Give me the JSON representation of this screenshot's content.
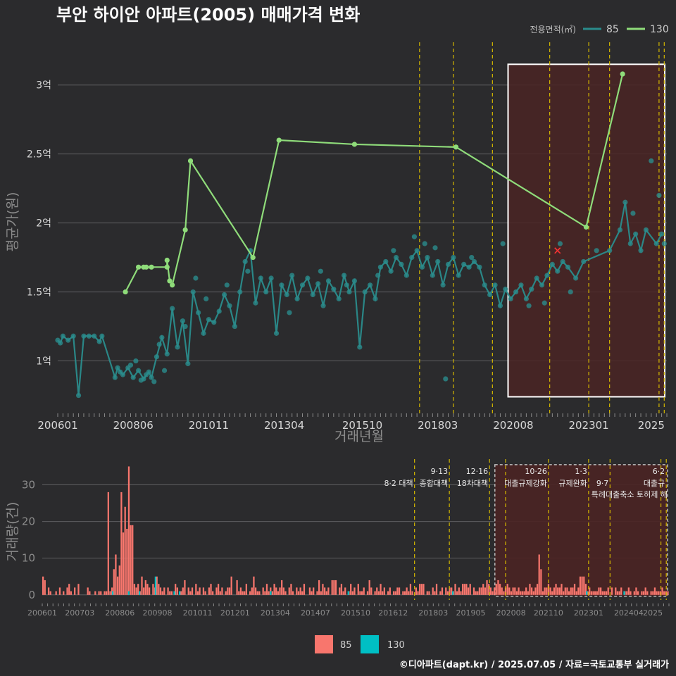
{
  "title": "부안 하이안 아파트(2005) 매매가격 변화",
  "footer": "©디아파트(dapt.kr) / 2025.07.05 / 자료=국토교통부 실거래가",
  "colors": {
    "background": "#2b2b2d",
    "s85_price": "#2a8c8c",
    "s130_price": "#8fdc7a",
    "s85_volume": "#f8766d",
    "s130_volume": "#00bfc4",
    "policy_line": "#d4b800",
    "highlight_fill": "#4a2424",
    "highlight_border": "#ffffff"
  },
  "chart_data": [
    {
      "type": "line",
      "name": "price",
      "ylabel": "평균가(원)",
      "xlabel": "거래년월",
      "yticks": [
        {
          "v": 1.0,
          "label": "1억"
        },
        {
          "v": 1.5,
          "label": "1.5억"
        },
        {
          "v": 2.0,
          "label": "2억"
        },
        {
          "v": 2.5,
          "label": "2.5억"
        },
        {
          "v": 3.0,
          "label": "3억"
        }
      ],
      "ylim": [
        0.62,
        3.32
      ],
      "xlim": [
        "2006-01",
        "2025-07"
      ],
      "xticks": [
        "200601",
        "200806",
        "201011",
        "201304",
        "201510",
        "201803",
        "202008",
        "202301",
        "2025"
      ],
      "legend": {
        "title": "전용면적(㎡)",
        "items": [
          "85",
          "130"
        ],
        "position": "top-right"
      },
      "policy_lines": [
        "2017-08",
        "2018-09",
        "2019-12",
        "2021-10",
        "2023-01",
        "2023-09",
        "2025-04",
        "2025-06"
      ],
      "highlight": {
        "from": "2020-06",
        "to": "2025-07",
        "ymin": 0.74,
        "ymax": 3.15
      },
      "series": [
        {
          "name": "130",
          "points": [
            [
              "2008-03",
              1.5
            ],
            [
              "2008-08",
              1.68
            ],
            [
              "2008-10",
              1.68
            ],
            [
              "2008-11",
              1.68
            ],
            [
              "2009-01",
              1.68
            ],
            [
              "2009-07",
              1.68
            ],
            [
              "2009-07",
              1.73
            ],
            [
              "2009-08",
              1.58
            ],
            [
              "2009-09",
              1.55
            ],
            [
              "2010-02",
              1.95
            ],
            [
              "2010-04",
              2.45
            ],
            [
              "2012-04",
              1.75
            ],
            [
              "2013-02",
              2.6
            ],
            [
              "2015-07",
              2.57
            ],
            [
              "2018-10",
              2.55
            ],
            [
              "2022-12",
              1.97
            ],
            [
              "2024-02",
              3.08
            ]
          ]
        },
        {
          "name": "85",
          "points": [
            [
              "2006-01",
              1.15
            ],
            [
              "2006-02",
              1.13
            ],
            [
              "2006-03",
              1.18
            ],
            [
              "2006-05",
              1.15
            ],
            [
              "2006-07",
              1.18
            ],
            [
              "2006-09",
              0.75
            ],
            [
              "2006-11",
              1.18
            ],
            [
              "2007-01",
              1.18
            ],
            [
              "2007-03",
              1.18
            ],
            [
              "2007-05",
              1.14
            ],
            [
              "2007-06",
              1.18
            ],
            [
              "2007-11",
              0.88
            ],
            [
              "2007-12",
              0.95
            ],
            [
              "2008-02",
              0.9
            ],
            [
              "2008-04",
              0.95
            ],
            [
              "2008-06",
              0.88
            ],
            [
              "2008-08",
              0.93
            ],
            [
              "2008-10",
              0.87
            ],
            [
              "2008-12",
              0.92
            ],
            [
              "2009-01",
              0.88
            ],
            [
              "2009-03",
              1.03
            ],
            [
              "2009-05",
              1.17
            ],
            [
              "2009-07",
              1.05
            ],
            [
              "2009-09",
              1.38
            ],
            [
              "2009-11",
              1.1
            ],
            [
              "2010-01",
              1.29
            ],
            [
              "2010-03",
              0.98
            ],
            [
              "2010-05",
              1.5
            ],
            [
              "2010-07",
              1.35
            ],
            [
              "2010-09",
              1.2
            ],
            [
              "2010-11",
              1.3
            ],
            [
              "2011-01",
              1.28
            ],
            [
              "2011-03",
              1.36
            ],
            [
              "2011-05",
              1.48
            ],
            [
              "2011-07",
              1.4
            ],
            [
              "2011-09",
              1.25
            ],
            [
              "2011-11",
              1.5
            ],
            [
              "2012-01",
              1.72
            ],
            [
              "2012-03",
              1.8
            ],
            [
              "2012-05",
              1.42
            ],
            [
              "2012-07",
              1.6
            ],
            [
              "2012-09",
              1.5
            ],
            [
              "2012-11",
              1.6
            ],
            [
              "2013-01",
              1.2
            ],
            [
              "2013-03",
              1.55
            ],
            [
              "2013-05",
              1.48
            ],
            [
              "2013-07",
              1.62
            ],
            [
              "2013-09",
              1.45
            ],
            [
              "2013-11",
              1.55
            ],
            [
              "2014-01",
              1.6
            ],
            [
              "2014-03",
              1.48
            ],
            [
              "2014-05",
              1.56
            ],
            [
              "2014-07",
              1.4
            ],
            [
              "2014-09",
              1.58
            ],
            [
              "2014-11",
              1.52
            ],
            [
              "2015-01",
              1.45
            ],
            [
              "2015-03",
              1.62
            ],
            [
              "2015-05",
              1.5
            ],
            [
              "2015-07",
              1.58
            ],
            [
              "2015-09",
              1.1
            ],
            [
              "2015-11",
              1.5
            ],
            [
              "2016-01",
              1.55
            ],
            [
              "2016-03",
              1.45
            ],
            [
              "2016-05",
              1.68
            ],
            [
              "2016-07",
              1.72
            ],
            [
              "2016-09",
              1.65
            ],
            [
              "2016-11",
              1.75
            ],
            [
              "2017-01",
              1.7
            ],
            [
              "2017-03",
              1.62
            ],
            [
              "2017-05",
              1.75
            ],
            [
              "2017-07",
              1.8
            ],
            [
              "2017-09",
              1.68
            ],
            [
              "2017-11",
              1.75
            ],
            [
              "2018-01",
              1.62
            ],
            [
              "2018-03",
              1.72
            ],
            [
              "2018-05",
              1.55
            ],
            [
              "2018-07",
              1.7
            ],
            [
              "2018-09",
              1.75
            ],
            [
              "2018-11",
              1.62
            ],
            [
              "2019-01",
              1.7
            ],
            [
              "2019-03",
              1.68
            ],
            [
              "2019-05",
              1.72
            ],
            [
              "2019-07",
              1.68
            ],
            [
              "2019-09",
              1.55
            ],
            [
              "2019-11",
              1.48
            ],
            [
              "2020-01",
              1.55
            ],
            [
              "2020-03",
              1.4
            ],
            [
              "2020-05",
              1.52
            ],
            [
              "2020-07",
              1.45
            ],
            [
              "2020-09",
              1.5
            ],
            [
              "2020-11",
              1.55
            ],
            [
              "2021-01",
              1.45
            ],
            [
              "2021-03",
              1.52
            ],
            [
              "2021-05",
              1.6
            ],
            [
              "2021-07",
              1.55
            ],
            [
              "2021-09",
              1.62
            ],
            [
              "2021-11",
              1.7
            ],
            [
              "2022-01",
              1.65
            ],
            [
              "2022-03",
              1.72
            ],
            [
              "2022-05",
              1.68
            ],
            [
              "2022-08",
              1.6
            ],
            [
              "2022-11",
              1.72
            ],
            [
              "2023-09",
              1.8
            ],
            [
              "2024-01",
              1.95
            ],
            [
              "2024-03",
              2.15
            ],
            [
              "2024-05",
              1.85
            ],
            [
              "2024-07",
              1.92
            ],
            [
              "2024-09",
              1.8
            ],
            [
              "2024-11",
              1.95
            ],
            [
              "2025-03",
              1.85
            ],
            [
              "2025-05",
              1.92
            ]
          ]
        }
      ],
      "scatter_85_extra": [
        [
          "2008-01",
          0.92
        ],
        [
          "2008-05",
          0.97
        ],
        [
          "2008-07",
          1.0
        ],
        [
          "2008-09",
          0.86
        ],
        [
          "2008-11",
          0.9
        ],
        [
          "2009-02",
          0.85
        ],
        [
          "2009-04",
          1.12
        ],
        [
          "2009-06",
          0.93
        ],
        [
          "2010-02",
          1.25
        ],
        [
          "2010-06",
          1.6
        ],
        [
          "2010-10",
          1.45
        ],
        [
          "2011-06",
          1.55
        ],
        [
          "2012-02",
          1.65
        ],
        [
          "2013-06",
          1.35
        ],
        [
          "2014-06",
          1.65
        ],
        [
          "2015-04",
          1.55
        ],
        [
          "2016-04",
          1.62
        ],
        [
          "2016-10",
          1.8
        ],
        [
          "2017-06",
          1.9
        ],
        [
          "2017-10",
          1.85
        ],
        [
          "2018-02",
          1.82
        ],
        [
          "2018-06",
          0.87
        ],
        [
          "2019-04",
          1.75
        ],
        [
          "2020-04",
          1.85
        ],
        [
          "2021-02",
          1.4
        ],
        [
          "2021-08",
          1.42
        ],
        [
          "2022-02",
          1.85
        ],
        [
          "2022-06",
          1.5
        ],
        [
          "2023-04",
          1.8
        ],
        [
          "2024-06",
          2.07
        ],
        [
          "2025-01",
          2.45
        ],
        [
          "2025-04",
          2.2
        ],
        [
          "2025-06",
          1.85
        ]
      ],
      "marker_x": {
        "x": "2022-01",
        "y": 1.8
      }
    },
    {
      "type": "bar",
      "name": "volume",
      "ylabel": "거래량(건)",
      "yticks": [
        0,
        10,
        20,
        30
      ],
      "ylim": [
        -1,
        37
      ],
      "xticks": [
        "200601",
        "200703",
        "200806",
        "200908",
        "201011",
        "201201",
        "201304",
        "201407",
        "201510",
        "201612",
        "201803",
        "201905",
        "202008",
        "202110",
        "202301",
        "202404",
        "2025"
      ],
      "legend": {
        "items": [
          "85",
          "130"
        ],
        "position": "bottom"
      },
      "policy_lines": [
        "2017-08",
        "2018-09",
        "2019-12",
        "2020-06",
        "2021-10",
        "2023-01",
        "2023-09",
        "2025-04",
        "2025-06"
      ],
      "policy_labels": [
        {
          "x": "2017-08",
          "line1": "",
          "line2": "8·2 대책"
        },
        {
          "x": "2018-09",
          "line1": "9·13",
          "line2": "종합대책"
        },
        {
          "x": "2019-12",
          "line1": "12·16",
          "line2": "18차대책"
        },
        {
          "x": "2021-10",
          "line1": "10·26",
          "line2": "대출규제강화"
        },
        {
          "x": "2023-01",
          "line1": "1·3",
          "line2": "규제완화"
        },
        {
          "x": "2023-09",
          "line1": "",
          "line2": "9·7"
        },
        {
          "x": "2025-06",
          "line1": "6·2",
          "line2": "대출규"
        }
      ],
      "policy_label_extra": "특례대출축소 토허제 해",
      "highlight": {
        "from": "2020-02",
        "to": "2025-07"
      },
      "volume_85": [
        5,
        4,
        0,
        2,
        1,
        0,
        0,
        1,
        0,
        2,
        0,
        1,
        0,
        2,
        3,
        1,
        0,
        2,
        0,
        3,
        0,
        0,
        0,
        0,
        2,
        1,
        0,
        0,
        1,
        0,
        1,
        1,
        0,
        1,
        1,
        28,
        1,
        2,
        7,
        11,
        5,
        8,
        28,
        17,
        24,
        18,
        35,
        19,
        19,
        3,
        2,
        3,
        1,
        5,
        2,
        4,
        3,
        2,
        0,
        3,
        2,
        5,
        3,
        2,
        1,
        2,
        0,
        2,
        1,
        1,
        0,
        3,
        2,
        0,
        1,
        2,
        4,
        0,
        2,
        1,
        2,
        0,
        3,
        1,
        2,
        0,
        2,
        1,
        0,
        2,
        3,
        1,
        0,
        2,
        3,
        1,
        2,
        0,
        1,
        2,
        2,
        5,
        0,
        0,
        4,
        1,
        2,
        1,
        1,
        3,
        0,
        1,
        2,
        5,
        2,
        1,
        1,
        0,
        2,
        1,
        3,
        1,
        2,
        1,
        3,
        2,
        1,
        2,
        4,
        2,
        1,
        0,
        2,
        3,
        1,
        0,
        2,
        1,
        2,
        1,
        3,
        0,
        0,
        2,
        1,
        2,
        0,
        1,
        4,
        1,
        3,
        2,
        1,
        2,
        0,
        4,
        4,
        4,
        0,
        2,
        3,
        1,
        2,
        0,
        1,
        3,
        1,
        2,
        0,
        3,
        1,
        1,
        2,
        0,
        1,
        4,
        2,
        0,
        1,
        2,
        1,
        3,
        1,
        2,
        0,
        1,
        2,
        0,
        1,
        1,
        2,
        2,
        0,
        1,
        1,
        2,
        1,
        3,
        1,
        0,
        2,
        1,
        3,
        3,
        3,
        0,
        1,
        1,
        0,
        2,
        1,
        3,
        0,
        1,
        2,
        0,
        2,
        1,
        2,
        2,
        1,
        3,
        1,
        2,
        1,
        3,
        3,
        3,
        2,
        3,
        0,
        2,
        1,
        1,
        2,
        2,
        3,
        2,
        4,
        3,
        2,
        1,
        2,
        3,
        4,
        3,
        2,
        1,
        2,
        3,
        2,
        1,
        2,
        2,
        1,
        2,
        1,
        1,
        1,
        2,
        1,
        3,
        2,
        1,
        2,
        3,
        11,
        7,
        1,
        2,
        2,
        3,
        2,
        1,
        2,
        3,
        2,
        2,
        3,
        1,
        2,
        2,
        1,
        2,
        2,
        3,
        1,
        2,
        5,
        5,
        5,
        3,
        1,
        2,
        1,
        1,
        1,
        1,
        2,
        2,
        1,
        1,
        1,
        2,
        0,
        2,
        0,
        2,
        1,
        1,
        2,
        0,
        1,
        1,
        2,
        1,
        0,
        1,
        2,
        1,
        0,
        1,
        1,
        2,
        1,
        0,
        1,
        1,
        2,
        1,
        1,
        1,
        2,
        1,
        1,
        1
      ],
      "volume_130": [
        {
          "x": "2008-03",
          "v": 1
        },
        {
          "x": "2008-09",
          "v": 1
        },
        {
          "x": "2009-01",
          "v": 1
        },
        {
          "x": "2009-07",
          "v": 5
        },
        {
          "x": "2010-02",
          "v": 1
        },
        {
          "x": "2010-04",
          "v": 1
        },
        {
          "x": "2013-02",
          "v": 1
        },
        {
          "x": "2015-07",
          "v": 1
        },
        {
          "x": "2018-10",
          "v": 1
        },
        {
          "x": "2022-12",
          "v": 1
        },
        {
          "x": "2024-02",
          "v": 1
        }
      ]
    }
  ]
}
